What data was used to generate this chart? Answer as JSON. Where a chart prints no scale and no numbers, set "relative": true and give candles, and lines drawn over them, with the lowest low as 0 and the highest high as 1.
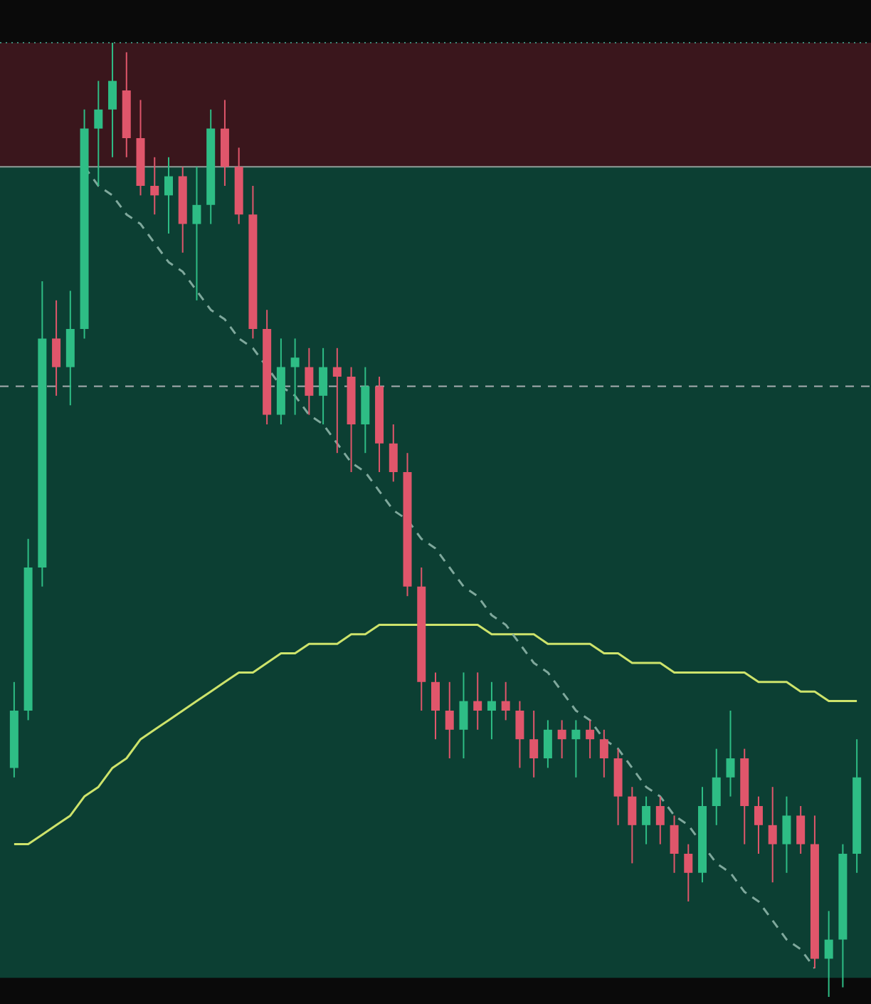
{
  "chart_data": {
    "type": "candlestick",
    "relative": true,
    "categories": [
      null,
      null,
      null,
      null,
      null,
      null,
      null,
      null,
      null,
      null,
      null,
      null,
      null,
      null,
      null,
      null,
      null,
      null,
      null,
      null,
      null,
      null,
      null,
      null,
      null,
      null,
      null,
      null,
      null,
      null,
      null,
      null,
      null,
      null,
      null,
      null,
      null,
      null,
      null,
      null,
      null,
      null,
      null,
      null,
      null,
      null,
      null,
      null,
      null,
      null,
      null,
      null,
      null,
      null,
      null,
      null,
      null,
      null,
      null,
      null,
      null
    ],
    "ohlc": [
      [
        0.24,
        0.33,
        0.23,
        0.3
      ],
      [
        0.3,
        0.48,
        0.29,
        0.45
      ],
      [
        0.45,
        0.75,
        0.43,
        0.69
      ],
      [
        0.69,
        0.73,
        0.63,
        0.66
      ],
      [
        0.66,
        0.74,
        0.62,
        0.7
      ],
      [
        0.7,
        0.93,
        0.69,
        0.91
      ],
      [
        0.91,
        0.96,
        0.85,
        0.93
      ],
      [
        0.93,
        1.0,
        0.88,
        0.96
      ],
      [
        0.95,
        0.99,
        0.88,
        0.9
      ],
      [
        0.9,
        0.94,
        0.84,
        0.85
      ],
      [
        0.85,
        0.88,
        0.82,
        0.84
      ],
      [
        0.84,
        0.88,
        0.8,
        0.86
      ],
      [
        0.86,
        0.87,
        0.78,
        0.81
      ],
      [
        0.81,
        0.87,
        0.73,
        0.83
      ],
      [
        0.83,
        0.93,
        0.81,
        0.91
      ],
      [
        0.91,
        0.94,
        0.85,
        0.87
      ],
      [
        0.87,
        0.89,
        0.81,
        0.82
      ],
      [
        0.82,
        0.85,
        0.69,
        0.7
      ],
      [
        0.7,
        0.72,
        0.6,
        0.61
      ],
      [
        0.61,
        0.69,
        0.6,
        0.66
      ],
      [
        0.66,
        0.69,
        0.61,
        0.67
      ],
      [
        0.66,
        0.68,
        0.61,
        0.63
      ],
      [
        0.63,
        0.68,
        0.6,
        0.66
      ],
      [
        0.66,
        0.68,
        0.57,
        0.65
      ],
      [
        0.65,
        0.66,
        0.55,
        0.6
      ],
      [
        0.6,
        0.66,
        0.57,
        0.64
      ],
      [
        0.64,
        0.65,
        0.55,
        0.58
      ],
      [
        0.58,
        0.6,
        0.54,
        0.55
      ],
      [
        0.55,
        0.57,
        0.42,
        0.43
      ],
      [
        0.43,
        0.45,
        0.3,
        0.33
      ],
      [
        0.33,
        0.34,
        0.27,
        0.3
      ],
      [
        0.3,
        0.33,
        0.25,
        0.28
      ],
      [
        0.28,
        0.34,
        0.25,
        0.31
      ],
      [
        0.31,
        0.34,
        0.28,
        0.3
      ],
      [
        0.3,
        0.33,
        0.27,
        0.31
      ],
      [
        0.31,
        0.33,
        0.29,
        0.3
      ],
      [
        0.3,
        0.31,
        0.24,
        0.27
      ],
      [
        0.27,
        0.3,
        0.23,
        0.25
      ],
      [
        0.25,
        0.29,
        0.24,
        0.28
      ],
      [
        0.28,
        0.29,
        0.25,
        0.27
      ],
      [
        0.27,
        0.29,
        0.23,
        0.28
      ],
      [
        0.28,
        0.29,
        0.25,
        0.27
      ],
      [
        0.27,
        0.28,
        0.23,
        0.25
      ],
      [
        0.25,
        0.26,
        0.18,
        0.21
      ],
      [
        0.21,
        0.22,
        0.14,
        0.18
      ],
      [
        0.18,
        0.21,
        0.16,
        0.2
      ],
      [
        0.2,
        0.21,
        0.16,
        0.18
      ],
      [
        0.18,
        0.19,
        0.13,
        0.15
      ],
      [
        0.15,
        0.16,
        0.1,
        0.13
      ],
      [
        0.13,
        0.22,
        0.12,
        0.2
      ],
      [
        0.2,
        0.26,
        0.18,
        0.23
      ],
      [
        0.23,
        0.3,
        0.21,
        0.25
      ],
      [
        0.25,
        0.26,
        0.16,
        0.2
      ],
      [
        0.2,
        0.21,
        0.15,
        0.18
      ],
      [
        0.18,
        0.22,
        0.12,
        0.16
      ],
      [
        0.16,
        0.21,
        0.13,
        0.19
      ],
      [
        0.19,
        0.2,
        0.15,
        0.16
      ],
      [
        0.16,
        0.19,
        0.03,
        0.04
      ],
      [
        0.04,
        0.09,
        0.0,
        0.06
      ],
      [
        0.06,
        0.16,
        0.01,
        0.15
      ],
      [
        0.15,
        0.27,
        0.13,
        0.23
      ]
    ],
    "colors": [
      "#2ebd85",
      "#2ebd85",
      "#2ebd85",
      "#e0566b",
      "#2ebd85",
      "#2ebd85",
      "#2ebd85",
      "#2ebd85",
      "#e0566b",
      "#e0566b",
      "#e0566b",
      "#2ebd85",
      "#e0566b",
      "#2ebd85",
      "#2ebd85",
      "#e0566b",
      "#e0566b",
      "#e0566b",
      "#e0566b",
      "#2ebd85",
      "#2ebd85",
      "#e0566b",
      "#2ebd85",
      "#e0566b",
      "#e0566b",
      "#2ebd85",
      "#e0566b",
      "#e0566b",
      "#e0566b",
      "#e0566b",
      "#e0566b",
      "#e0566b",
      "#2ebd85",
      "#e0566b",
      "#2ebd85",
      "#e0566b",
      "#e0566b",
      "#e0566b",
      "#2ebd85",
      "#e0566b",
      "#2ebd85",
      "#e0566b",
      "#e0566b",
      "#e0566b",
      "#e0566b",
      "#2ebd85",
      "#e0566b",
      "#e0566b",
      "#e0566b",
      "#2ebd85",
      "#2ebd85",
      "#2ebd85",
      "#e0566b",
      "#e0566b",
      "#e0566b",
      "#2ebd85",
      "#e0566b",
      "#e0566b",
      "#2ebd85",
      "#2ebd85",
      "#2ebd85"
    ],
    "series": [
      {
        "type": "line",
        "color": "#cde36b",
        "line_style": "solid",
        "values": [
          0.16,
          0.16,
          0.17,
          0.18,
          0.19,
          0.21,
          0.22,
          0.24,
          0.25,
          0.27,
          0.28,
          0.29,
          0.3,
          0.31,
          0.32,
          0.33,
          0.34,
          0.34,
          0.35,
          0.36,
          0.36,
          0.37,
          0.37,
          0.37,
          0.38,
          0.38,
          0.39,
          0.39,
          0.39,
          0.39,
          0.39,
          0.39,
          0.39,
          0.39,
          0.38,
          0.38,
          0.38,
          0.38,
          0.37,
          0.37,
          0.37,
          0.37,
          0.36,
          0.36,
          0.35,
          0.35,
          0.35,
          0.34,
          0.34,
          0.34,
          0.34,
          0.34,
          0.34,
          0.33,
          0.33,
          0.33,
          0.32,
          0.32,
          0.31,
          0.31,
          0.31
        ]
      },
      {
        "type": "line",
        "color": "#7fa89c",
        "line_style": "dashed",
        "values": [
          null,
          null,
          null,
          null,
          null,
          0.87,
          0.85,
          0.84,
          0.82,
          0.81,
          0.79,
          0.77,
          0.76,
          0.74,
          0.72,
          0.71,
          0.69,
          0.68,
          0.66,
          0.64,
          0.63,
          0.61,
          0.6,
          0.58,
          0.56,
          0.55,
          0.53,
          0.51,
          0.5,
          0.48,
          0.47,
          0.45,
          0.43,
          0.42,
          0.4,
          0.39,
          0.37,
          0.35,
          0.34,
          0.32,
          0.3,
          0.29,
          0.27,
          0.26,
          0.24,
          0.22,
          0.21,
          0.19,
          0.18,
          null,
          0.14,
          0.13,
          0.11,
          0.1,
          0.08,
          0.06,
          0.05,
          0.03,
          null,
          null,
          null
        ]
      }
    ],
    "bands": [
      {
        "axis": "y",
        "from": 0.87,
        "to": 1.0,
        "color": "#3a161c"
      },
      {
        "axis": "y",
        "from": 0.02,
        "to": 0.87,
        "color": "#0c3f33"
      }
    ],
    "ref_lines": [
      {
        "axis": "y",
        "value": 1.0,
        "color": "#3f8a78",
        "line_style": "dotted"
      },
      {
        "axis": "y",
        "value": 0.87,
        "color": "#8f9e99",
        "line_style": "solid"
      },
      {
        "axis": "y",
        "value": 0.64,
        "color": "#a8aeb0",
        "line_style": "dashed"
      }
    ]
  }
}
